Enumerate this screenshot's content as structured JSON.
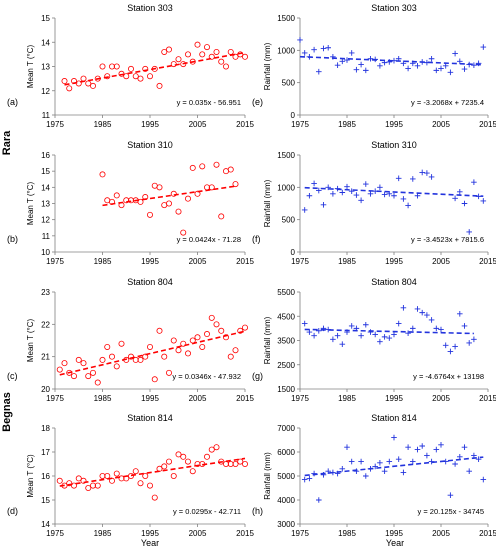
{
  "figure": {
    "station_group_labels": [
      "Rara",
      "Begnas"
    ],
    "x_axis_title": "Year"
  },
  "colors": {
    "temperature": "#ff0000",
    "rainfall": "#2233dd",
    "axis": "#808080",
    "text": "#000000"
  },
  "markers": {
    "temperature": "open-circle",
    "rainfall": "plus"
  },
  "chart_data": [
    {
      "type": "scatter",
      "panel": "(a)",
      "title": "Station 303",
      "ylabel": "Mean T (°C)",
      "xlabel": "",
      "xlim": [
        1975,
        2015
      ],
      "xticks": [
        "1975",
        "1985",
        "1995",
        "2005",
        "2015"
      ],
      "ylim": [
        11,
        15
      ],
      "yticks": [
        "11",
        "12",
        "13",
        "14",
        "15"
      ],
      "trendline": {
        "equation": "y = 0.035x - 56.951",
        "slope": 0.035,
        "intercept": -56.951
      },
      "x": [
        1977,
        1978,
        1979,
        1980,
        1981,
        1982,
        1983,
        1984,
        1985,
        1986,
        1987,
        1988,
        1989,
        1990,
        1991,
        1992,
        1993,
        1994,
        1995,
        1996,
        1997,
        1998,
        1999,
        2000,
        2001,
        2002,
        2003,
        2004,
        2005,
        2006,
        2007,
        2008,
        2009,
        2010,
        2011,
        2012,
        2013,
        2014,
        2015
      ],
      "y": [
        12.4,
        12.1,
        12.4,
        12.3,
        12.5,
        12.3,
        12.2,
        12.5,
        13.0,
        12.6,
        13.0,
        13.0,
        12.7,
        12.6,
        12.9,
        12.6,
        12.5,
        12.9,
        12.6,
        12.9,
        12.2,
        13.6,
        13.7,
        13.1,
        13.3,
        13.1,
        13.5,
        13.2,
        13.9,
        13.5,
        13.8,
        13.4,
        13.6,
        13.2,
        13.0,
        13.6,
        13.4,
        13.5,
        13.4
      ]
    },
    {
      "type": "scatter",
      "panel": "(e)",
      "title": "Station 303",
      "ylabel": "Rainfall (mm)",
      "xlabel": "",
      "xlim": [
        1975,
        2015
      ],
      "xticks": [
        "1975",
        "1985",
        "1995",
        "2005",
        "2015"
      ],
      "ylim": [
        0,
        1500
      ],
      "yticks": [
        "0",
        "500",
        "1000",
        "1500"
      ],
      "trendline": {
        "equation": "y = -3.2068x + 7235.4",
        "slope": -3.2068,
        "intercept": 7235.4
      },
      "x": [
        1975,
        1976,
        1977,
        1978,
        1979,
        1980,
        1981,
        1982,
        1983,
        1984,
        1985,
        1986,
        1987,
        1988,
        1989,
        1990,
        1991,
        1992,
        1993,
        1994,
        1995,
        1996,
        1997,
        1998,
        1999,
        2000,
        2001,
        2002,
        2003,
        2004,
        2005,
        2006,
        2007,
        2008,
        2009,
        2010,
        2011,
        2012,
        2013,
        2014
      ],
      "y": [
        1160,
        960,
        900,
        1010,
        670,
        1030,
        1040,
        900,
        770,
        830,
        850,
        960,
        700,
        780,
        690,
        870,
        860,
        760,
        810,
        820,
        840,
        870,
        800,
        720,
        800,
        760,
        820,
        810,
        870,
        690,
        720,
        760,
        660,
        950,
        830,
        710,
        780,
        770,
        800,
        1050
      ]
    },
    {
      "type": "scatter",
      "panel": "(b)",
      "title": "Station 310",
      "ylabel": "Mean T (°C)",
      "xlabel": "",
      "xlim": [
        1975,
        2015
      ],
      "xticks": [
        "1975",
        "1985",
        "1995",
        "2005",
        "2015"
      ],
      "ylim": [
        10,
        16
      ],
      "yticks": [
        "10",
        "11",
        "12",
        "13",
        "14",
        "15",
        "16"
      ],
      "trendline": {
        "equation": "y = 0.0424x - 71.28",
        "slope": 0.0424,
        "intercept": -71.28
      },
      "x": [
        1985,
        1986,
        1987,
        1988,
        1989,
        1990,
        1991,
        1992,
        1993,
        1994,
        1995,
        1996,
        1997,
        1998,
        1999,
        2000,
        2001,
        2002,
        2003,
        2004,
        2005,
        2006,
        2007,
        2008,
        2009,
        2010,
        2011,
        2012,
        2013
      ],
      "y": [
        14.8,
        13.2,
        13.1,
        13.5,
        12.9,
        13.2,
        13.2,
        13.2,
        13.1,
        13.4,
        12.3,
        14.1,
        14.0,
        12.9,
        13.0,
        13.6,
        12.5,
        11.2,
        13.3,
        15.2,
        13.6,
        15.3,
        14.0,
        14.0,
        15.4,
        12.2,
        15.0,
        15.1,
        14.2
      ]
    },
    {
      "type": "scatter",
      "panel": "(f)",
      "title": "Station 310",
      "ylabel": "Rainfall (mm)",
      "xlabel": "",
      "xlim": [
        1975,
        2015
      ],
      "xticks": [
        "1975",
        "1985",
        "1995",
        "2005",
        "2015"
      ],
      "ylim": [
        0,
        1500
      ],
      "yticks": [
        "0",
        "500",
        "1000",
        "1500"
      ],
      "trendline": {
        "equation": "y = -3.4523x + 7815.6",
        "slope": -3.4523,
        "intercept": 7815.6
      },
      "x": [
        1976,
        1977,
        1978,
        1979,
        1980,
        1981,
        1982,
        1983,
        1984,
        1985,
        1986,
        1987,
        1988,
        1989,
        1990,
        1991,
        1992,
        1993,
        1994,
        1995,
        1996,
        1997,
        1998,
        1999,
        2000,
        2001,
        2002,
        2003,
        2008,
        2009,
        2010,
        2011,
        2012,
        2013,
        2014
      ],
      "y": [
        650,
        870,
        1060,
        950,
        730,
        1000,
        900,
        980,
        920,
        1010,
        940,
        880,
        800,
        1050,
        900,
        940,
        1000,
        890,
        900,
        870,
        1140,
        820,
        720,
        1130,
        870,
        1230,
        1220,
        1160,
        830,
        930,
        750,
        310,
        1080,
        860,
        790
      ]
    },
    {
      "type": "scatter",
      "panel": "(c)",
      "title": "Station 804",
      "ylabel": "Mean T (°C)",
      "xlabel": "",
      "xlim": [
        1975,
        2015
      ],
      "xticks": [
        "1975",
        "1985",
        "1995",
        "2005",
        "2015"
      ],
      "ylim": [
        20,
        23
      ],
      "yticks": [
        "20",
        "21",
        "22",
        "23"
      ],
      "trendline": {
        "equation": "y = 0.0346x - 47.932",
        "slope": 0.0346,
        "intercept": -47.932
      },
      "x": [
        1976,
        1977,
        1978,
        1979,
        1980,
        1981,
        1982,
        1983,
        1984,
        1985,
        1986,
        1987,
        1988,
        1989,
        1990,
        1991,
        1992,
        1993,
        1994,
        1995,
        1996,
        1997,
        1998,
        1999,
        2000,
        2001,
        2002,
        2003,
        2004,
        2005,
        2006,
        2007,
        2008,
        2009,
        2010,
        2011,
        2012,
        2013,
        2014,
        2015
      ],
      "y": [
        20.6,
        20.8,
        20.5,
        20.4,
        20.9,
        20.8,
        20.4,
        20.5,
        20.2,
        20.9,
        21.3,
        21.0,
        20.7,
        21.4,
        20.9,
        21.0,
        20.9,
        20.9,
        21.0,
        21.3,
        20.3,
        21.8,
        21.0,
        20.5,
        21.5,
        21.2,
        21.4,
        21.1,
        21.5,
        21.6,
        21.3,
        21.7,
        22.2,
        22.0,
        21.8,
        21.6,
        21.0,
        21.2,
        21.8,
        21.9
      ]
    },
    {
      "type": "scatter",
      "panel": "(g)",
      "title": "Station 804",
      "ylabel": "Rainfall (mm)",
      "xlabel": "",
      "xlim": [
        1975,
        2015
      ],
      "xticks": [
        "1975",
        "1985",
        "1995",
        "2005",
        "2015"
      ],
      "ylim": [
        1500,
        5500
      ],
      "yticks": [
        "1500",
        "2500",
        "3500",
        "4500",
        "5500"
      ],
      "trendline": {
        "equation": "y = -4.6764x + 13198",
        "slope": -4.6764,
        "intercept": 13198
      },
      "x": [
        1976,
        1977,
        1978,
        1979,
        1980,
        1981,
        1982,
        1983,
        1984,
        1985,
        1986,
        1987,
        1988,
        1989,
        1990,
        1991,
        1992,
        1993,
        1994,
        1995,
        1996,
        1997,
        1998,
        1999,
        2000,
        2001,
        2002,
        2003,
        2004,
        2005,
        2006,
        2007,
        2008,
        2009,
        2010,
        2011,
        2012
      ],
      "y": [
        4200,
        3850,
        3700,
        3900,
        4000,
        3950,
        3550,
        3700,
        3350,
        3850,
        4100,
        4000,
        3700,
        4150,
        3850,
        3750,
        3450,
        3650,
        3600,
        3750,
        4200,
        4850,
        3800,
        4000,
        4800,
        4650,
        4550,
        4350,
        4000,
        3950,
        3300,
        3050,
        3250,
        4600,
        4100,
        3400,
        3550
      ]
    },
    {
      "type": "scatter",
      "panel": "(d)",
      "title": "Station 814",
      "ylabel": "Mean T (°C)",
      "xlabel": "Year",
      "xlim": [
        1975,
        2015
      ],
      "xticks": [
        "1975",
        "1985",
        "1995",
        "2005",
        "2015"
      ],
      "ylim": [
        14,
        18
      ],
      "yticks": [
        "14",
        "15",
        "16",
        "17",
        "18"
      ],
      "trendline": {
        "equation": "y = 0.0295x - 42.711",
        "slope": 0.0295,
        "intercept": -42.711
      },
      "x": [
        1976,
        1977,
        1978,
        1979,
        1980,
        1981,
        1982,
        1983,
        1984,
        1985,
        1986,
        1987,
        1988,
        1989,
        1990,
        1991,
        1992,
        1993,
        1994,
        1995,
        1996,
        1997,
        1998,
        1999,
        2000,
        2001,
        2002,
        2003,
        2004,
        2005,
        2006,
        2007,
        2008,
        2009,
        2010,
        2011,
        2012,
        2013,
        2014,
        2015
      ],
      "y": [
        15.8,
        15.6,
        15.7,
        15.6,
        15.9,
        15.8,
        15.5,
        15.6,
        15.6,
        16.0,
        16.0,
        15.8,
        16.1,
        15.9,
        15.9,
        16.0,
        16.2,
        15.7,
        16.0,
        15.6,
        15.1,
        16.3,
        16.4,
        16.6,
        16.0,
        16.9,
        16.8,
        16.6,
        16.2,
        16.5,
        16.5,
        16.8,
        17.1,
        17.2,
        16.6,
        16.5,
        16.5,
        16.5,
        16.6,
        16.5
      ]
    },
    {
      "type": "scatter",
      "panel": "(h)",
      "title": "Station 814",
      "ylabel": "Rainfall (mm)",
      "xlabel": "Year",
      "xlim": [
        1975,
        2015
      ],
      "xticks": [
        "1975",
        "1985",
        "1995",
        "2005",
        "2015"
      ],
      "ylim": [
        3000,
        7000
      ],
      "yticks": [
        "3000",
        "4000",
        "5000",
        "6000",
        "7000"
      ],
      "trendline": {
        "equation": "y = 20.125x - 34745",
        "slope": 20.125,
        "intercept": -34745
      },
      "x": [
        1976,
        1977,
        1978,
        1979,
        1980,
        1981,
        1982,
        1983,
        1984,
        1985,
        1986,
        1987,
        1988,
        1989,
        1990,
        1991,
        1992,
        1993,
        1994,
        1995,
        1996,
        1997,
        1998,
        1999,
        2000,
        2001,
        2002,
        2003,
        2004,
        2005,
        2006,
        2007,
        2008,
        2009,
        2010,
        2011,
        2012,
        2013,
        2014
      ],
      "y": [
        4850,
        4900,
        5100,
        4000,
        5050,
        5200,
        5150,
        5100,
        5300,
        6200,
        5600,
        5200,
        5600,
        5000,
        5300,
        5400,
        5550,
        5200,
        5600,
        6600,
        5700,
        5150,
        6200,
        5600,
        6100,
        6250,
        5850,
        5600,
        6100,
        6300,
        5600,
        4200,
        5500,
        5800,
        6200,
        5200,
        5850,
        5700,
        4850
      ]
    }
  ]
}
